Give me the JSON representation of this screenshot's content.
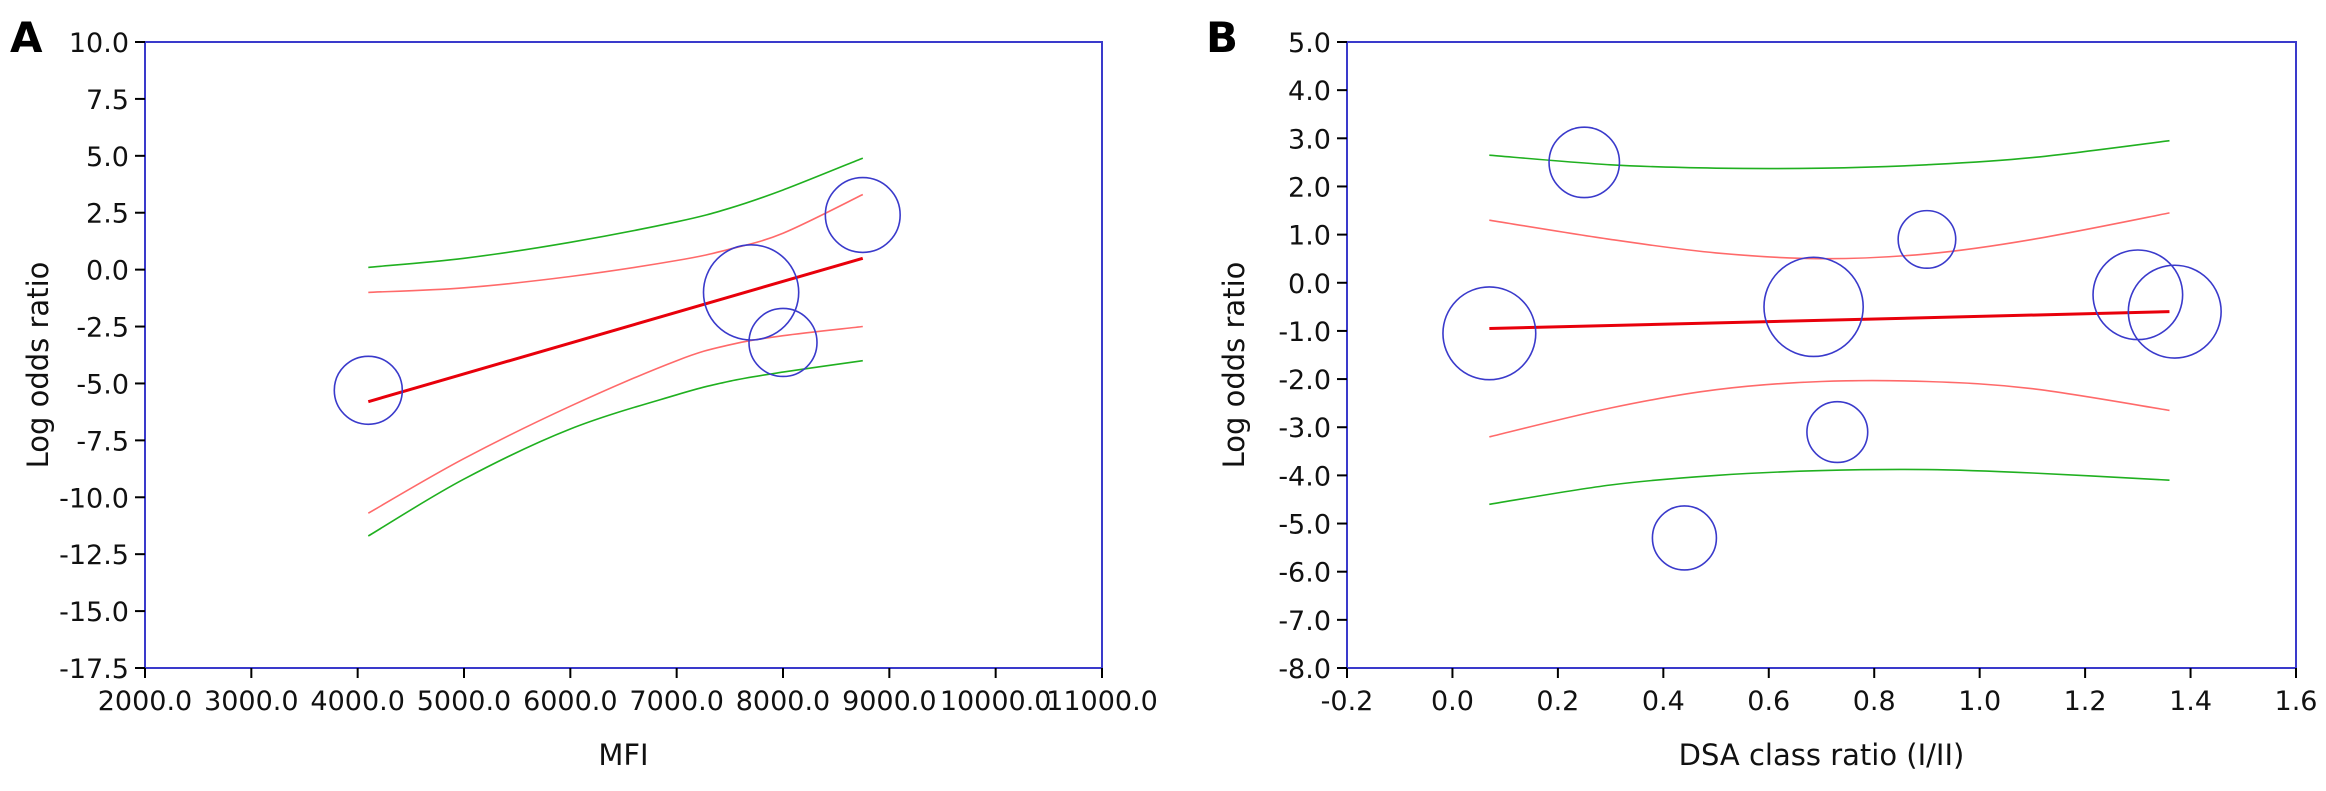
{
  "chart_data": [
    {
      "type": "scatter",
      "panel": "A",
      "xlabel": "MFI",
      "ylabel": "Log odds ratio",
      "xlim": [
        2000,
        11000
      ],
      "ylim": [
        -17.5,
        10
      ],
      "xticks": [
        2000,
        3000,
        4000,
        5000,
        6000,
        7000,
        8000,
        9000,
        10000,
        11000
      ],
      "xtick_labels": [
        "2000.0",
        "3000.0",
        "4000.0",
        "5000.0",
        "6000.0",
        "7000.0",
        "8000.0",
        "9000.0",
        "10000.0",
        "11000.0"
      ],
      "yticks": [
        10,
        7.5,
        5,
        2.5,
        0,
        -2.5,
        -5,
        -7.5,
        -10,
        -12.5,
        -15,
        -17.5
      ],
      "ytick_labels": [
        "10.0",
        "7.5",
        "5.0",
        "2.5",
        "0.0",
        "-2.5",
        "-5.0",
        "-7.5",
        "-10.0",
        "-12.5",
        "-15.0",
        "-17.5"
      ],
      "points": [
        {
          "x": 4100,
          "y": -5.3,
          "weight": 1.0
        },
        {
          "x": 7700,
          "y": -1.0,
          "weight": 1.4
        },
        {
          "x": 8000,
          "y": -3.2,
          "weight": 1.0
        },
        {
          "x": 8750,
          "y": 2.4,
          "weight": 1.1
        }
      ],
      "regression_line": {
        "x": [
          4100,
          8750
        ],
        "y": [
          -5.8,
          0.5
        ],
        "color": "#e8000b"
      },
      "inner_band": {
        "x": [
          4100,
          5000,
          6000,
          7000,
          7500,
          8000,
          8750
        ],
        "upper": [
          -1.0,
          -0.8,
          -0.3,
          0.4,
          0.9,
          1.6,
          3.3
        ],
        "lower": [
          -10.7,
          -8.3,
          -6.0,
          -4.0,
          -3.3,
          -2.9,
          -2.5
        ],
        "color": "#ff6a6a"
      },
      "outer_band": {
        "x": [
          4100,
          5000,
          6000,
          7000,
          7500,
          8000,
          8750
        ],
        "upper": [
          0.1,
          0.5,
          1.2,
          2.1,
          2.7,
          3.5,
          4.9
        ],
        "lower": [
          -11.7,
          -9.2,
          -7.0,
          -5.5,
          -4.9,
          -4.5,
          -4.0
        ],
        "color": "#20b020"
      },
      "colors": {
        "marker": "#3a3acb",
        "frame": "#3a3acb"
      }
    },
    {
      "type": "scatter",
      "panel": "B",
      "xlabel": "DSA class ratio (I/II)",
      "ylabel": "Log odds ratio",
      "xlim": [
        -0.2,
        1.6
      ],
      "ylim": [
        -8,
        5
      ],
      "xticks": [
        -0.2,
        0,
        0.2,
        0.4,
        0.6,
        0.8,
        1.0,
        1.2,
        1.4,
        1.6
      ],
      "xtick_labels": [
        "-0.2",
        "0.0",
        "0.2",
        "0.4",
        "0.6",
        "0.8",
        "1.0",
        "1.2",
        "1.4",
        "1.6"
      ],
      "yticks": [
        5,
        4,
        3,
        2,
        1,
        0,
        -1,
        -2,
        -3,
        -4,
        -5,
        -6,
        -7,
        -8
      ],
      "ytick_labels": [
        "5.0",
        "4.0",
        "3.0",
        "2.0",
        "1.0",
        "0.0",
        "-1.0",
        "-2.0",
        "-3.0",
        "-4.0",
        "-5.0",
        "-6.0",
        "-7.0",
        "-8.0"
      ],
      "points": [
        {
          "x": 0.07,
          "y": -1.05,
          "weight": 1.45
        },
        {
          "x": 0.25,
          "y": 2.5,
          "weight": 1.1
        },
        {
          "x": 0.44,
          "y": -5.3,
          "weight": 1.0
        },
        {
          "x": 0.685,
          "y": -0.5,
          "weight": 1.55
        },
        {
          "x": 0.73,
          "y": -3.1,
          "weight": 0.95
        },
        {
          "x": 0.9,
          "y": 0.9,
          "weight": 0.9
        },
        {
          "x": 1.3,
          "y": -0.25,
          "weight": 1.4
        },
        {
          "x": 1.37,
          "y": -0.6,
          "weight": 1.45
        }
      ],
      "regression_line": {
        "x": [
          0.07,
          1.36
        ],
        "y": [
          -0.95,
          -0.6
        ],
        "color": "#e8000b"
      },
      "inner_band": {
        "x": [
          0.07,
          0.3,
          0.5,
          0.7,
          0.9,
          1.1,
          1.36
        ],
        "upper": [
          1.3,
          0.9,
          0.62,
          0.5,
          0.6,
          0.9,
          1.45
        ],
        "lower": [
          -3.2,
          -2.6,
          -2.22,
          -2.05,
          -2.05,
          -2.2,
          -2.65
        ],
        "color": "#ff6a6a"
      },
      "outer_band": {
        "x": [
          0.07,
          0.3,
          0.5,
          0.7,
          0.9,
          1.1,
          1.36
        ],
        "upper": [
          2.65,
          2.45,
          2.38,
          2.38,
          2.45,
          2.6,
          2.95
        ],
        "lower": [
          -4.6,
          -4.2,
          -4.0,
          -3.9,
          -3.88,
          -3.95,
          -4.1
        ],
        "color": "#20b020"
      },
      "colors": {
        "marker": "#3a3acb",
        "frame": "#3a3acb"
      }
    }
  ]
}
